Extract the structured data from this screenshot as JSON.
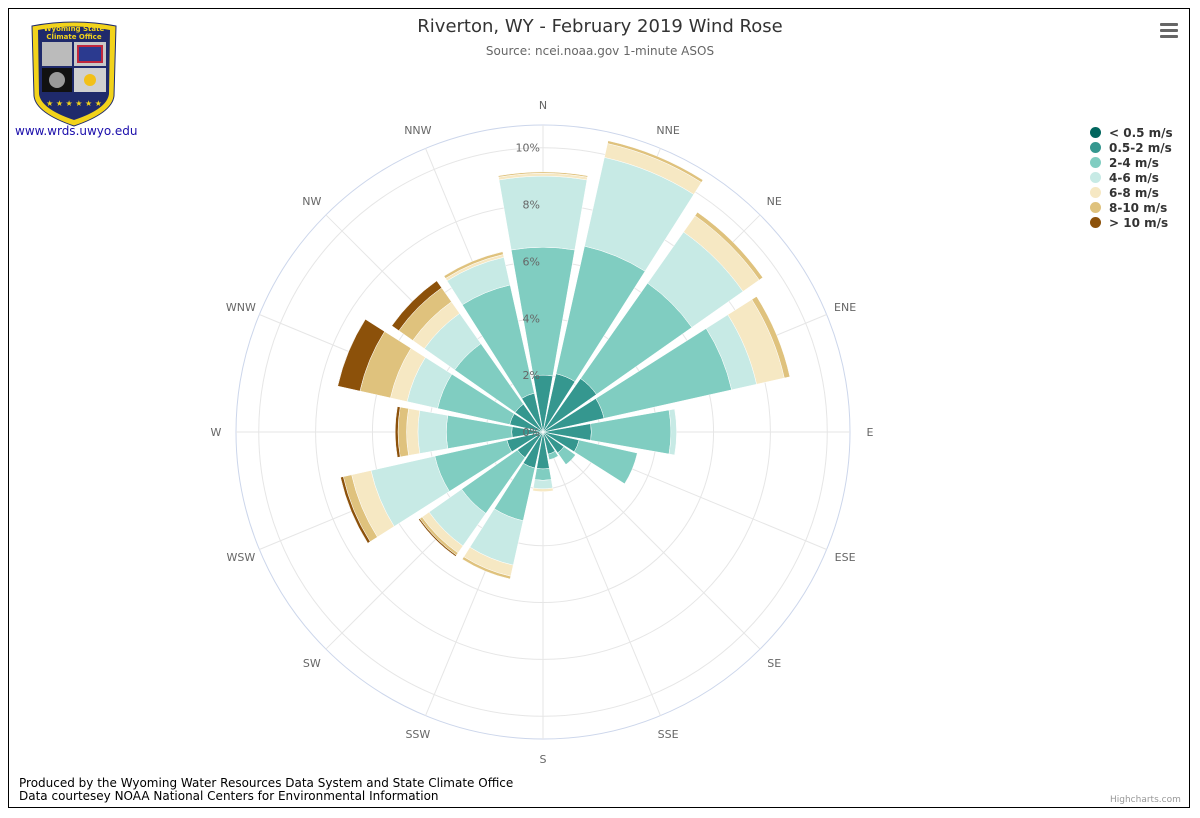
{
  "header": {
    "title": "Riverton, WY - February 2019 Wind Rose",
    "subtitle": "Source: ncei.noaa.gov 1-minute ASOS"
  },
  "logo": {
    "text_line1": "Wyoming State",
    "text_line2": "Climate Office",
    "link_text": "www.wrds.uwyo.edu",
    "colors": {
      "navy": "#1f2a6b",
      "gold": "#f2d31b"
    }
  },
  "menu": {
    "icon": "hamburger-menu-icon"
  },
  "footer": {
    "line1": "Produced by the Wyoming Water Resources Data System and State Climate Office",
    "line2": "Data courtesey NOAA National Centers for Environmental Information",
    "credit": "Highcharts.com"
  },
  "chart_data": {
    "type": "windrose",
    "title": "Riverton, WY - February 2019 Wind Rose",
    "subtitle": "Source: ncei.noaa.gov 1-minute ASOS",
    "categories": [
      "N",
      "NNE",
      "NE",
      "ENE",
      "E",
      "ESE",
      "SE",
      "SSE",
      "S",
      "SSW",
      "SW",
      "WSW",
      "W",
      "WNW",
      "NW",
      "NNW"
    ],
    "radial_ticks": [
      "0%",
      "2%",
      "4%",
      "6%",
      "8%",
      "10%"
    ],
    "radial_max": 10.8,
    "stacking": "normal",
    "legend_position": "right",
    "series": [
      {
        "name": "< 0.5 m/s",
        "color": "#01665e",
        "values": [
          0,
          0,
          0,
          0,
          0,
          0,
          0,
          0,
          0,
          0,
          0,
          0,
          0,
          0,
          0,
          0
        ]
      },
      {
        "name": "0.5-2 m/s",
        "color": "#35978f",
        "values": [
          2.0,
          2.1,
          2.3,
          2.2,
          1.7,
          1.3,
          0.9,
          0.8,
          1.3,
          1.3,
          1.1,
          1.3,
          1.1,
          1.2,
          1.2,
          1.4
        ]
      },
      {
        "name": "2-4 m/s",
        "color": "#80cdc1",
        "values": [
          4.5,
          4.6,
          4.1,
          4.6,
          2.8,
          2.1,
          0.5,
          0.2,
          0.4,
          1.9,
          2.4,
          2.6,
          2.3,
          2.6,
          2.6,
          3.9
        ]
      },
      {
        "name": "4-6 m/s",
        "color": "#c7eae5",
        "values": [
          2.5,
          3.2,
          2.2,
          0.9,
          0.2,
          0,
          0,
          0,
          0.3,
          1.6,
          1.4,
          2.3,
          1.0,
          1.1,
          1.3,
          1.0
        ]
      },
      {
        "name": "6-8 m/s",
        "color": "#f6e8c3",
        "values": [
          0.1,
          0.5,
          0.7,
          1.0,
          0,
          0,
          0,
          0,
          0.1,
          0.4,
          0.3,
          0.7,
          0.4,
          0.6,
          0.5,
          0.1
        ]
      },
      {
        "name": "8-10 m/s",
        "color": "#dfc27d",
        "values": [
          0.05,
          0.1,
          0.15,
          0.2,
          0,
          0,
          0,
          0,
          0,
          0.1,
          0.1,
          0.3,
          0.3,
          1.1,
          0.6,
          0.1
        ]
      },
      {
        "name": "> 10 m/s",
        "color": "#8c510a",
        "values": [
          0,
          0,
          0,
          0,
          0,
          0,
          0,
          0,
          0,
          0,
          0.05,
          0.1,
          0.1,
          0.8,
          0.3,
          0
        ]
      }
    ]
  }
}
